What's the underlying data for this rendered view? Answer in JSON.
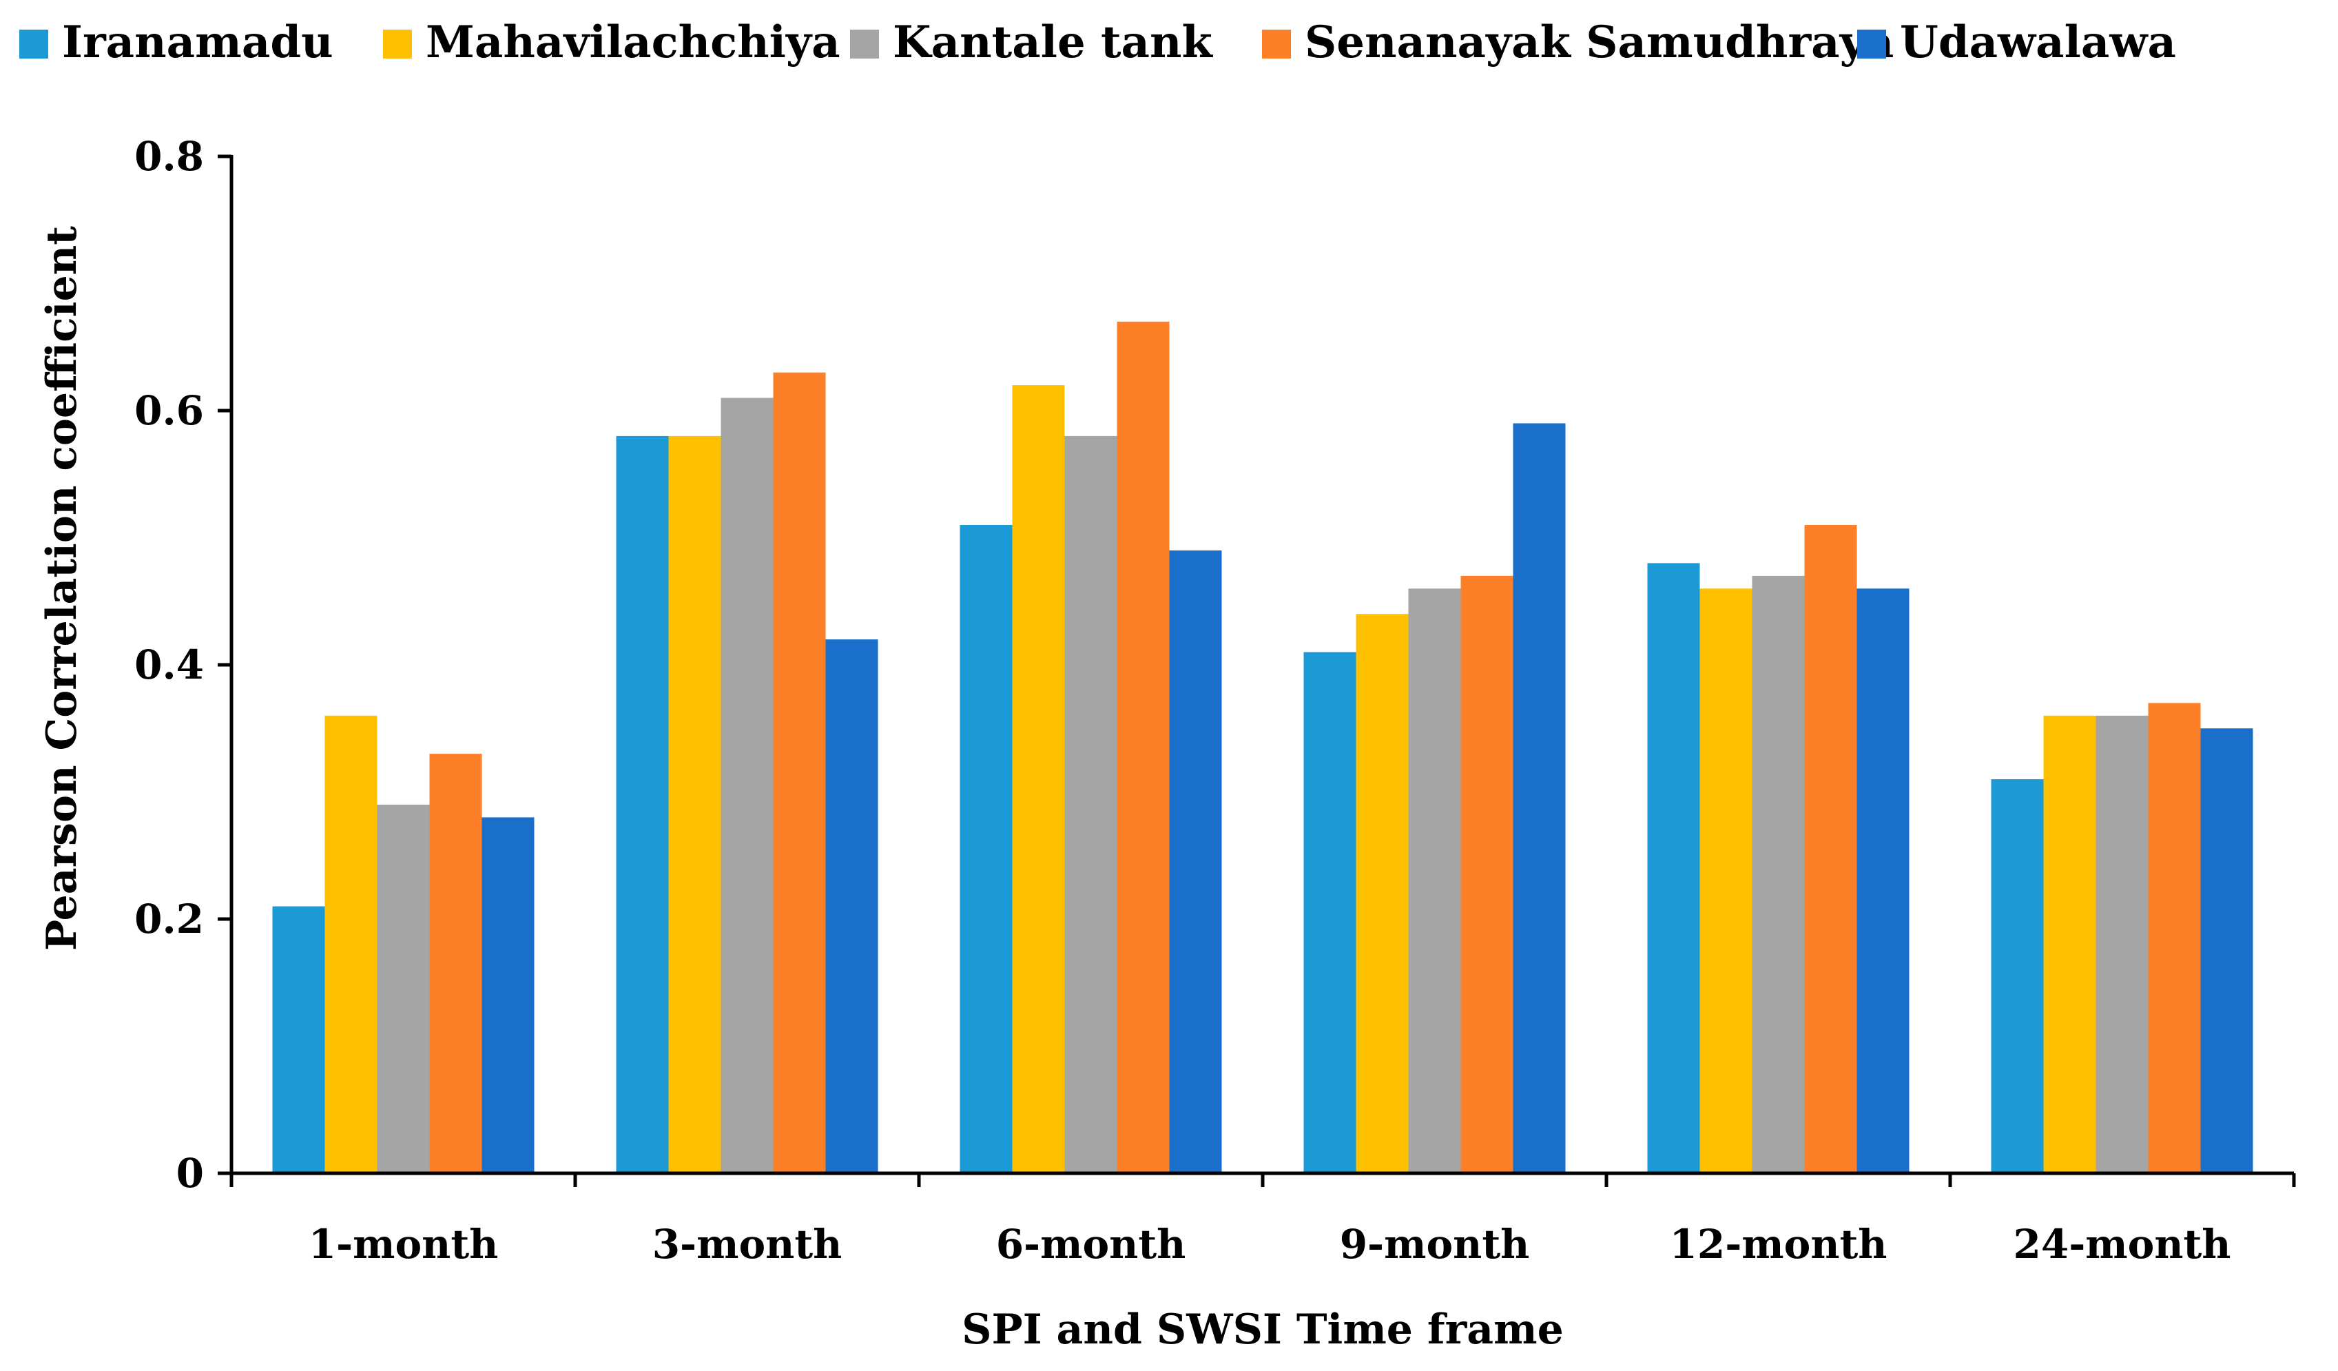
{
  "chart_data": {
    "type": "bar",
    "title": "",
    "xlabel": "SPI and SWSI Time frame",
    "ylabel": "Pearson Correlation coefficient",
    "ylim": [
      0,
      0.8
    ],
    "yticks": [
      0,
      0.2,
      0.4,
      0.6,
      0.8
    ],
    "ytick_labels": [
      "0",
      "0.2",
      "0.4",
      "0.6",
      "0.8"
    ],
    "grid": false,
    "legend_position": "top",
    "categories": [
      "1-month",
      "3-month",
      "6-month",
      "9-month",
      "12-month",
      "24-month"
    ],
    "series": [
      {
        "name": "Iranamadu",
        "color": "#1B9AD6",
        "values": [
          0.21,
          0.58,
          0.51,
          0.41,
          0.48,
          0.31
        ]
      },
      {
        "name": "Mahavilachchiya",
        "color": "#FFC000",
        "values": [
          0.36,
          0.58,
          0.62,
          0.44,
          0.46,
          0.36
        ]
      },
      {
        "name": "Kantale tank",
        "color": "#A5A5A5",
        "values": [
          0.29,
          0.61,
          0.58,
          0.46,
          0.47,
          0.36
        ]
      },
      {
        "name": "Senanayak Samudhraya",
        "color": "#FD7F28",
        "values": [
          0.33,
          0.63,
          0.67,
          0.47,
          0.51,
          0.37
        ]
      },
      {
        "name": "Udawalawa",
        "color": "#1A6FCA",
        "values": [
          0.28,
          0.42,
          0.49,
          0.59,
          0.46,
          0.35
        ]
      }
    ]
  }
}
